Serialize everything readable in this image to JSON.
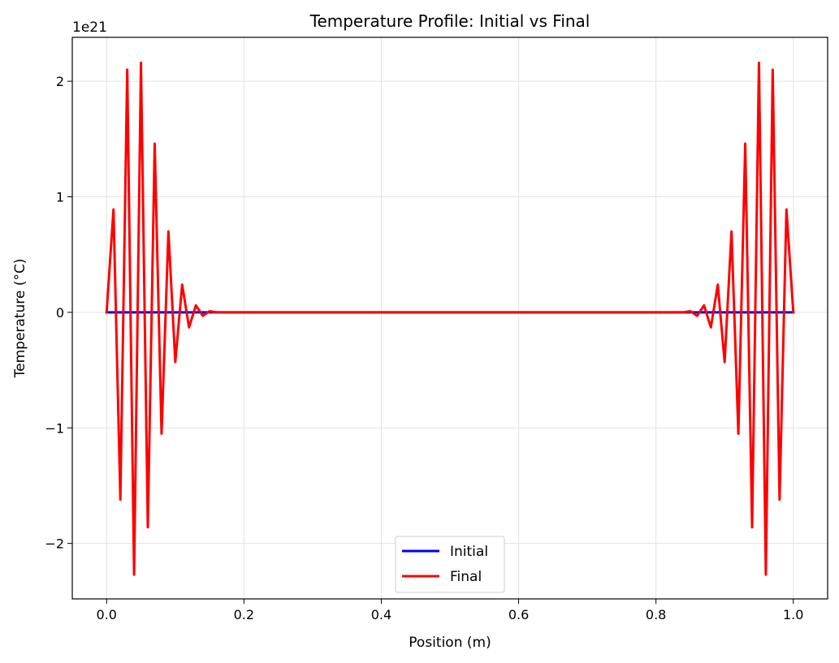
{
  "chart_data": {
    "type": "line",
    "title": "Temperature Profile: Initial vs Final",
    "xlabel": "Position (m)",
    "ylabel": "Temperature (°C)",
    "y_offset_text": "1e21",
    "y_scale_multiplier": 1e+21,
    "xlim": [
      -0.05,
      1.05
    ],
    "ylim": [
      -2.48,
      2.38
    ],
    "x_ticks": [
      0.0,
      0.2,
      0.4,
      0.6,
      0.8,
      1.0
    ],
    "x_tick_labels": [
      "0.0",
      "0.2",
      "0.4",
      "0.6",
      "0.8",
      "1.0"
    ],
    "y_ticks": [
      -2,
      -1,
      0,
      1,
      2
    ],
    "y_tick_labels": [
      "−2",
      "−1",
      "0",
      "1",
      "2"
    ],
    "grid": true,
    "legend_position": "lower center",
    "series": [
      {
        "name": "Initial",
        "color": "#0000ff",
        "x": [
          0.0,
          0.01,
          0.02,
          0.03,
          0.04,
          0.05,
          0.06,
          0.07,
          0.08,
          0.09,
          0.1,
          0.11,
          0.12,
          0.13,
          0.14,
          0.15,
          0.16,
          0.84,
          0.85,
          0.86,
          0.87,
          0.88,
          0.89,
          0.9,
          0.91,
          0.92,
          0.93,
          0.94,
          0.95,
          0.96,
          0.97,
          0.98,
          0.99,
          1.0
        ],
        "values": [
          0,
          0,
          0,
          0,
          0,
          0,
          0,
          0,
          0,
          0,
          0,
          0,
          0,
          0,
          0,
          0,
          0,
          0,
          0,
          0,
          0,
          0,
          0,
          0,
          0,
          0,
          0,
          0,
          0,
          0,
          0,
          0,
          0,
          0
        ]
      },
      {
        "name": "Final",
        "color": "#ff0000",
        "x": [
          0.0,
          0.01,
          0.02,
          0.03,
          0.04,
          0.05,
          0.06,
          0.07,
          0.08,
          0.09,
          0.1,
          0.11,
          0.12,
          0.13,
          0.14,
          0.15,
          0.16,
          0.84,
          0.85,
          0.86,
          0.87,
          0.88,
          0.89,
          0.9,
          0.91,
          0.92,
          0.93,
          0.94,
          0.95,
          0.96,
          0.97,
          0.98,
          0.99,
          1.0
        ],
        "values": [
          0,
          0.89,
          -1.62,
          2.1,
          -2.27,
          2.16,
          -1.86,
          1.46,
          -1.05,
          0.7,
          -0.43,
          0.24,
          -0.13,
          0.06,
          -0.03,
          0.01,
          0,
          0,
          0.01,
          -0.03,
          0.06,
          -0.13,
          0.24,
          -0.43,
          0.7,
          -1.05,
          1.46,
          -1.86,
          2.16,
          -2.27,
          2.1,
          -1.62,
          0.89,
          0
        ]
      }
    ]
  }
}
